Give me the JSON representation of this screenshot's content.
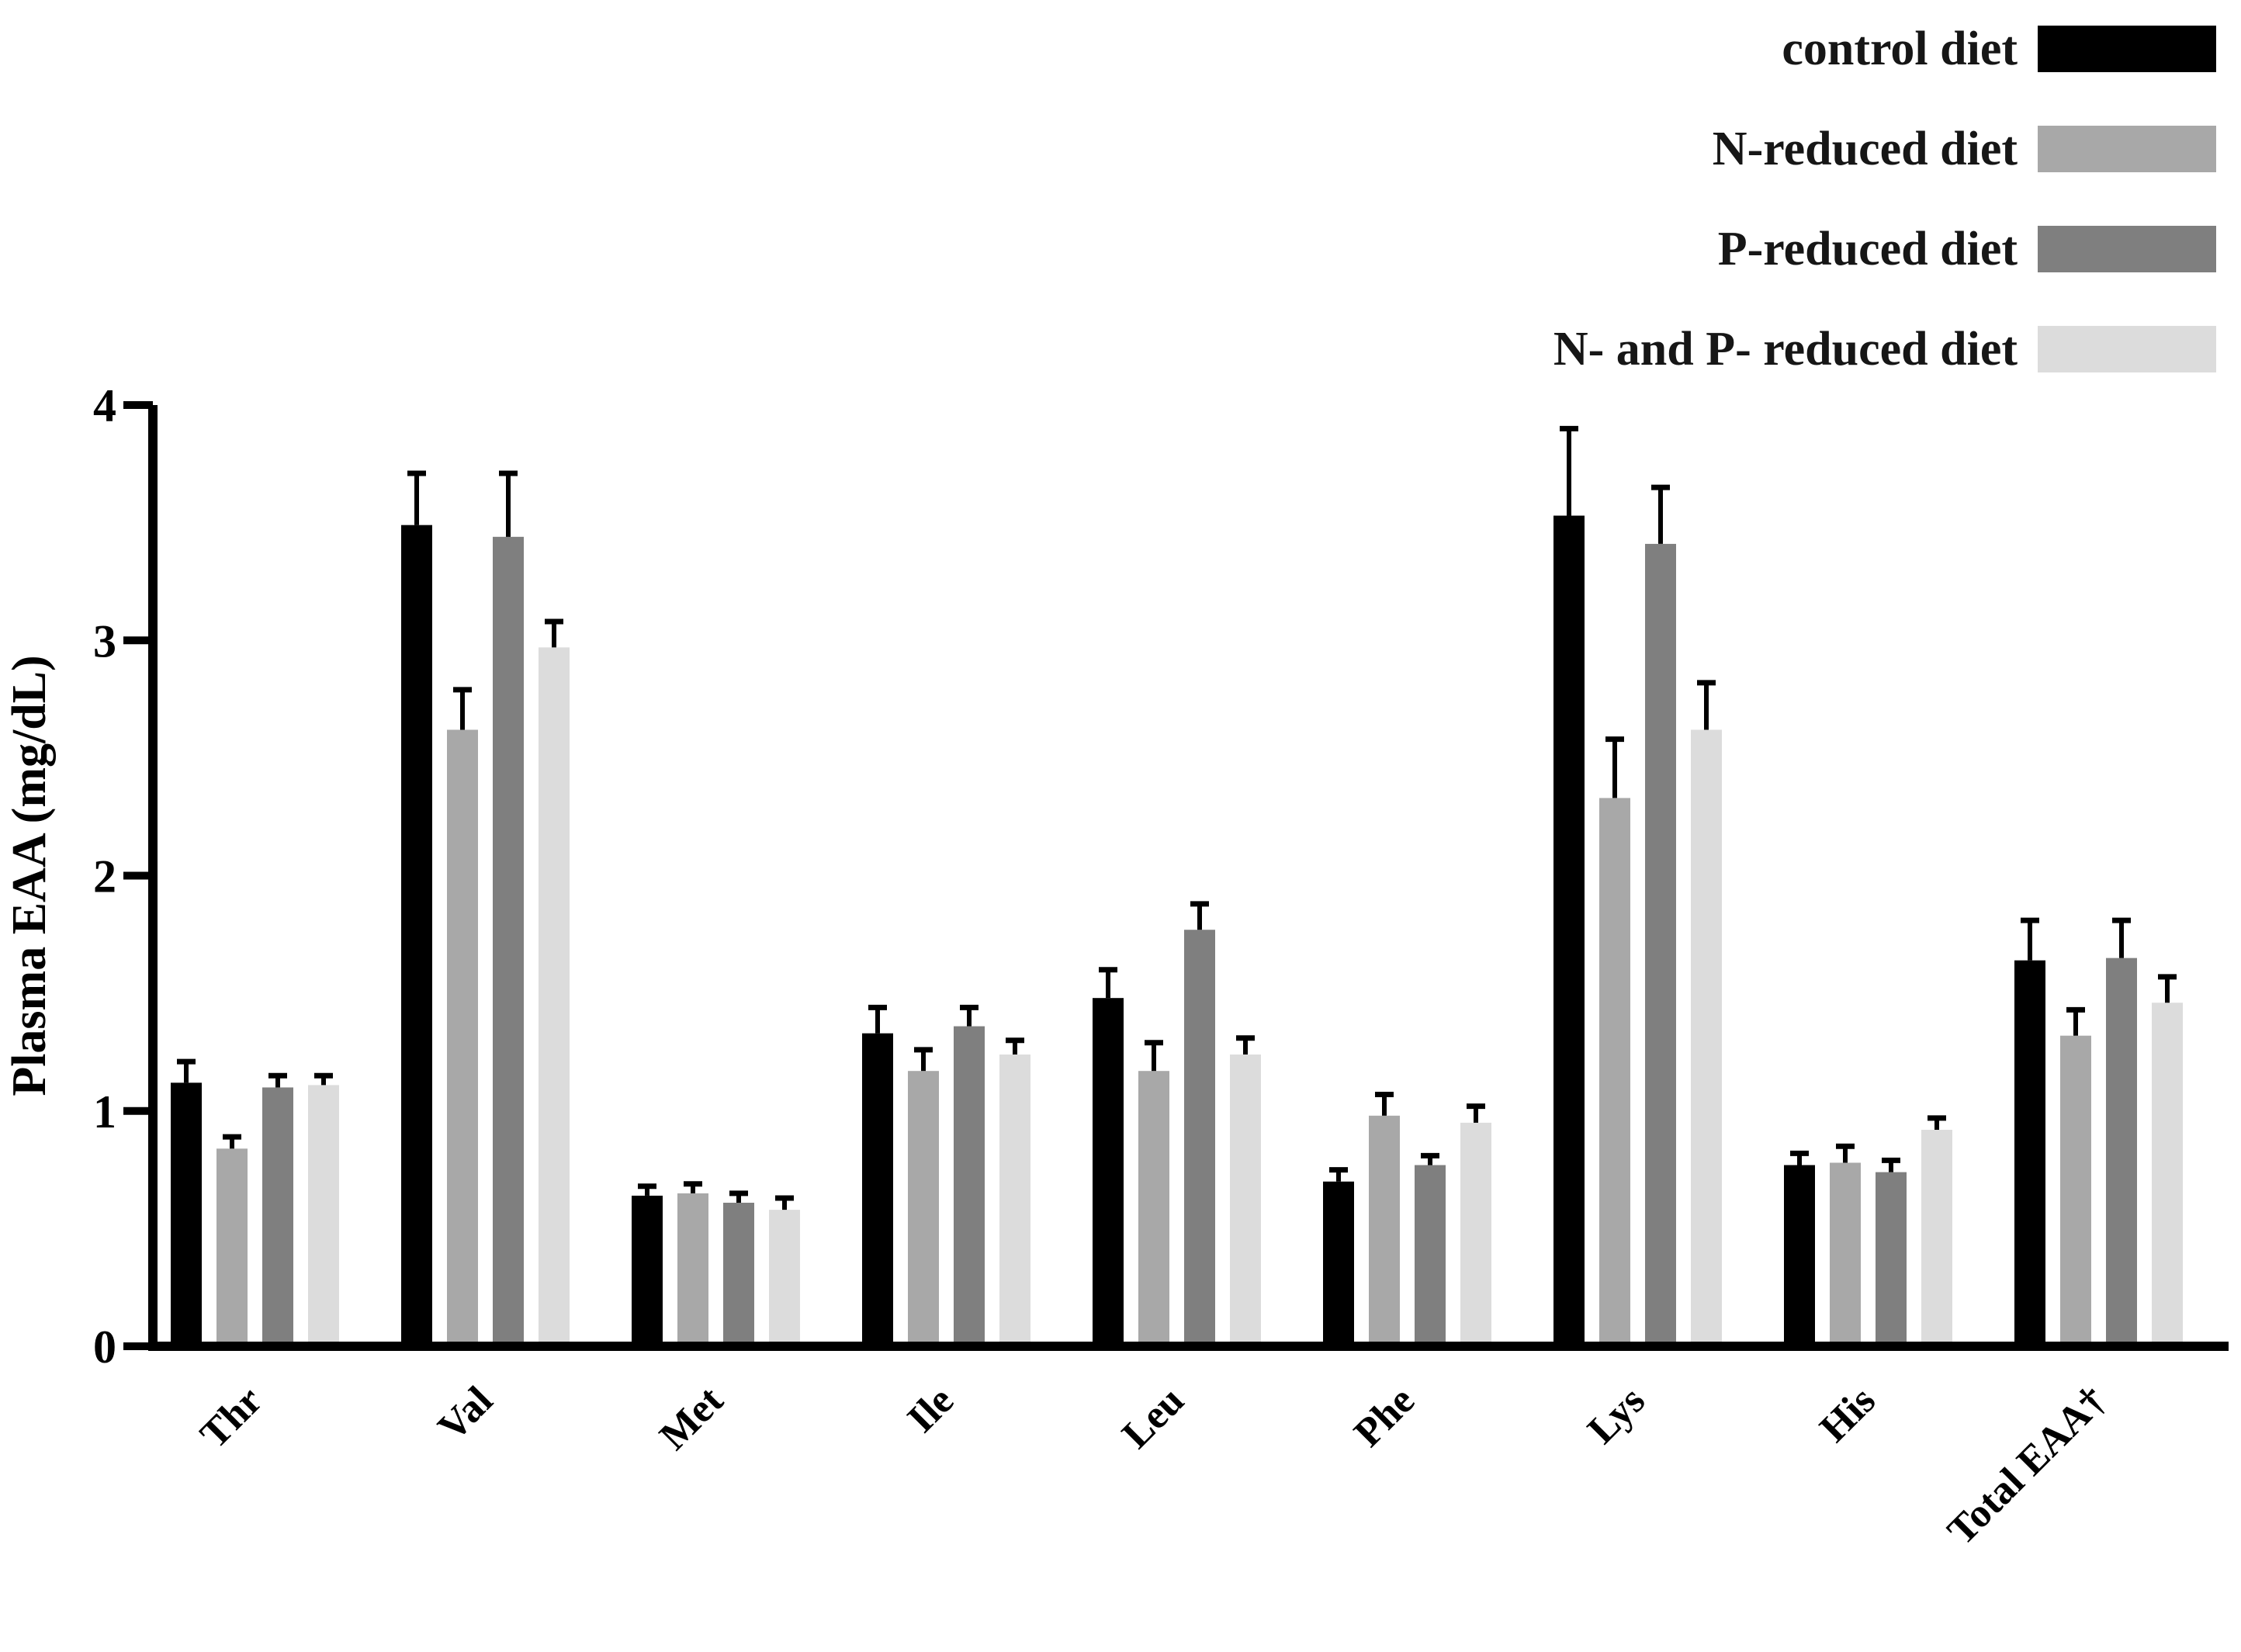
{
  "figure": {
    "background": "#ffffff",
    "text_color": "#000000"
  },
  "chart_data": {
    "type": "bar",
    "title": "",
    "xlabel": "",
    "ylabel": "Plasma EAA (mg/dL)",
    "ylim": [
      0,
      4
    ],
    "yticks": [
      "0",
      "1",
      "2",
      "3",
      "4"
    ],
    "grid": false,
    "legend_position": "top-right",
    "error_bars": "upper",
    "categories": [
      "Thr",
      "Val",
      "Met",
      "Ile",
      "Leu",
      "Phe",
      "Lys",
      "His",
      "Total EAA†"
    ],
    "series": [
      {
        "name": "control diet",
        "color": "#000000",
        "values": [
          1.12,
          3.49,
          0.64,
          1.33,
          1.48,
          0.7,
          3.53,
          0.77,
          1.64
        ],
        "errors": [
          0.09,
          0.22,
          0.04,
          0.11,
          0.12,
          0.05,
          0.37,
          0.05,
          0.17
        ]
      },
      {
        "name": "N-reduced diet",
        "color": "#a8a8a8",
        "values": [
          0.84,
          2.62,
          0.65,
          1.17,
          1.17,
          0.98,
          2.33,
          0.78,
          1.32
        ],
        "errors": [
          0.05,
          0.17,
          0.04,
          0.09,
          0.12,
          0.09,
          0.25,
          0.07,
          0.11
        ]
      },
      {
        "name": "P-reduced diet",
        "color": "#7f7f7f",
        "values": [
          1.1,
          3.44,
          0.61,
          1.36,
          1.77,
          0.77,
          3.41,
          0.74,
          1.65
        ],
        "errors": [
          0.05,
          0.27,
          0.04,
          0.08,
          0.11,
          0.04,
          0.24,
          0.05,
          0.16
        ]
      },
      {
        "name": "N- and P- reduced diet",
        "color": "#dcdcdc",
        "values": [
          1.11,
          2.97,
          0.58,
          1.24,
          1.24,
          0.95,
          2.62,
          0.92,
          1.46
        ],
        "errors": [
          0.04,
          0.11,
          0.05,
          0.06,
          0.07,
          0.07,
          0.2,
          0.05,
          0.11
        ]
      }
    ]
  }
}
